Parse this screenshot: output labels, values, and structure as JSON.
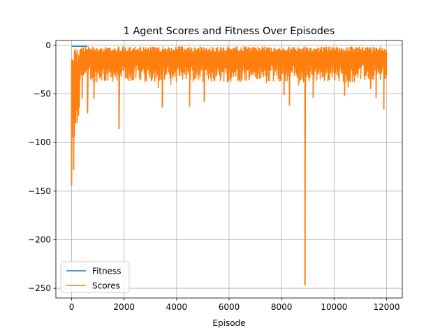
{
  "chart_data": {
    "type": "line",
    "title": "1 Agent Scores and Fitness Over Episodes",
    "xlabel": "Episode",
    "ylabel": "",
    "xlim": [
      -600,
      12600
    ],
    "ylim": [
      -260,
      5
    ],
    "xticks": [
      0,
      2000,
      4000,
      6000,
      8000,
      10000,
      12000
    ],
    "xtick_labels": [
      "0",
      "2000",
      "4000",
      "6000",
      "8000",
      "10000",
      "12000"
    ],
    "yticks": [
      0,
      -50,
      -100,
      -150,
      -200,
      -250
    ],
    "ytick_labels": [
      "0",
      "−50",
      "−100",
      "−150",
      "−200",
      "−250"
    ],
    "grid": true,
    "legend_position": "lower-left",
    "series": [
      {
        "name": "Fitness",
        "color": "#1f77b4",
        "x": [
          0,
          200,
          400,
          600
        ],
        "values": [
          -1,
          -1,
          -1,
          -1
        ]
      },
      {
        "name": "Scores",
        "color": "#ff7f0e",
        "band": {
          "upper": -1,
          "lower": -38,
          "x_range": [
            0,
            12000
          ]
        },
        "spikes": [
          {
            "x": 0,
            "value": -144
          },
          {
            "x": 80,
            "value": -128
          },
          {
            "x": 150,
            "value": -80
          },
          {
            "x": 250,
            "value": -65
          },
          {
            "x": 400,
            "value": -55
          },
          {
            "x": 600,
            "value": -70
          },
          {
            "x": 850,
            "value": -55
          },
          {
            "x": 1800,
            "value": -86
          },
          {
            "x": 3450,
            "value": -64
          },
          {
            "x": 4500,
            "value": -63
          },
          {
            "x": 5050,
            "value": -58
          },
          {
            "x": 8100,
            "value": -51
          },
          {
            "x": 8300,
            "value": -62
          },
          {
            "x": 8900,
            "value": -247
          },
          {
            "x": 9200,
            "value": -54
          },
          {
            "x": 10400,
            "value": -52
          },
          {
            "x": 11400,
            "value": -45
          },
          {
            "x": 11600,
            "value": -54
          },
          {
            "x": 11900,
            "value": -66
          }
        ]
      }
    ]
  }
}
